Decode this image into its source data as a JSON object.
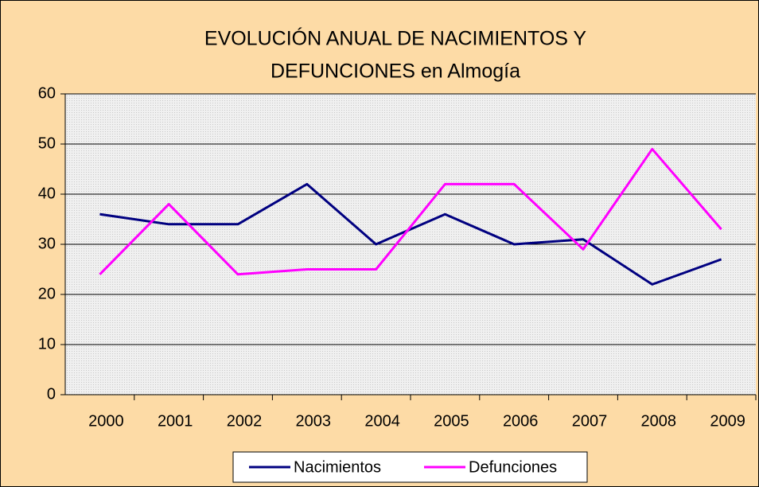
{
  "chart_data": {
    "type": "line",
    "title": [
      "EVOLUCIÓN ANUAL DE NACIMIENTOS Y",
      "DEFUNCIONES en Almogía"
    ],
    "categories": [
      "2000",
      "2001",
      "2002",
      "2003",
      "2004",
      "2005",
      "2006",
      "2007",
      "2008",
      "2009"
    ],
    "series": [
      {
        "name": "Nacimientos",
        "color": "#000080",
        "values": [
          36,
          34,
          34,
          42,
          30,
          36,
          30,
          31,
          22,
          27
        ]
      },
      {
        "name": "Defunciones",
        "color": "#FF00FF",
        "values": [
          24,
          38,
          24,
          25,
          25,
          42,
          42,
          29,
          49,
          33
        ]
      }
    ],
    "ylim": [
      0,
      60
    ],
    "yticks": [
      0,
      10,
      20,
      30,
      40,
      50,
      60
    ],
    "grid": true,
    "legend": "bottom"
  }
}
